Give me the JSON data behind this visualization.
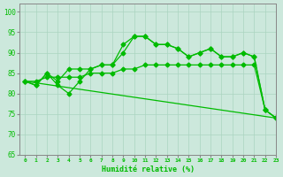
{
  "xlabel": "Humidité relative (%)",
  "background_color": "#cce8dc",
  "grid_color": "#aad4c0",
  "line_color": "#00bb00",
  "xlim": [
    -0.5,
    23
  ],
  "ylim": [
    65,
    102
  ],
  "yticks": [
    65,
    70,
    75,
    80,
    85,
    90,
    95,
    100
  ],
  "xticks": [
    0,
    1,
    2,
    3,
    4,
    5,
    6,
    7,
    8,
    9,
    10,
    11,
    12,
    13,
    14,
    15,
    16,
    17,
    18,
    19,
    20,
    21,
    22,
    23
  ],
  "line1": [
    83,
    82,
    85,
    82,
    80,
    83,
    86,
    87,
    87,
    90,
    94,
    94,
    92,
    92,
    91,
    89,
    90,
    91,
    89,
    89,
    90,
    89,
    76,
    74
  ],
  "line2": [
    83,
    82,
    85,
    83,
    86,
    86,
    86,
    87,
    87,
    92,
    94,
    94,
    92,
    92,
    91,
    89,
    90,
    91,
    89,
    89,
    90,
    89,
    76,
    74
  ],
  "line3": [
    83,
    83,
    84,
    84,
    84,
    84,
    85,
    85,
    85,
    86,
    86,
    87,
    87,
    87,
    87,
    87,
    87,
    87,
    87,
    87,
    87,
    87,
    76,
    74
  ],
  "line4_x": [
    0,
    23
  ],
  "line4_y": [
    83,
    74
  ]
}
